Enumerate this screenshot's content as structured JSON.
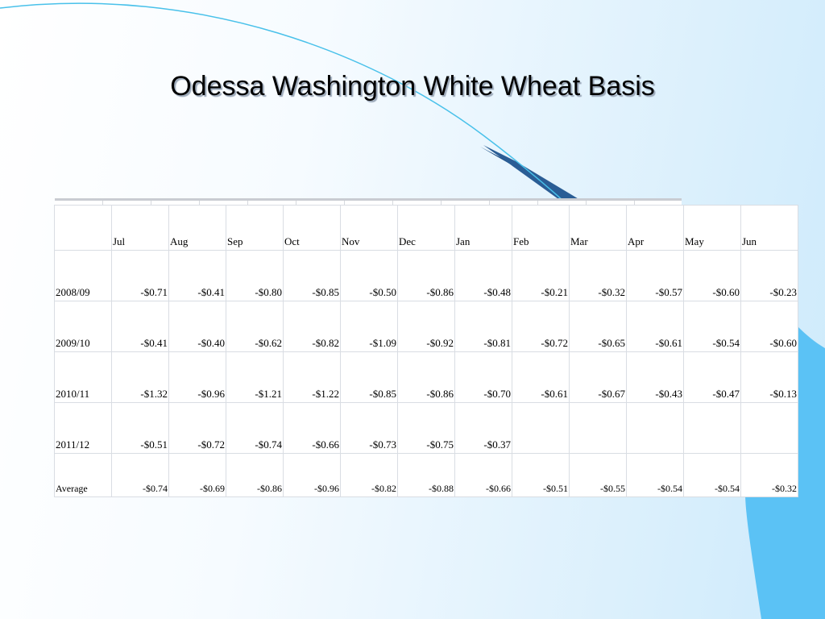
{
  "title": "Odessa Washington White Wheat Basis",
  "colors": {
    "accent_blue": "#5bc2f5",
    "navy": "#1f4f86",
    "curve": "#49c1ea"
  },
  "table": {
    "months": [
      "Jul",
      "Aug",
      "Sep",
      "Oct",
      "Nov",
      "Dec",
      "Jan",
      "Feb",
      "Mar",
      "Apr",
      "May",
      "Jun"
    ],
    "rows": [
      {
        "label": "2008/09",
        "values": [
          "-$0.71",
          "-$0.41",
          "-$0.80",
          "-$0.85",
          "-$0.50",
          "-$0.86",
          "-$0.48",
          "-$0.21",
          "-$0.32",
          "-$0.57",
          "-$0.60",
          "-$0.23"
        ]
      },
      {
        "label": "2009/10",
        "values": [
          "-$0.41",
          "-$0.40",
          "-$0.62",
          "-$0.82",
          "-$1.09",
          "-$0.92",
          "-$0.81",
          "-$0.72",
          "-$0.65",
          "-$0.61",
          "-$0.54",
          "-$0.60"
        ]
      },
      {
        "label": "2010/11",
        "values": [
          "-$1.32",
          "-$0.96",
          "-$1.21",
          "-$1.22",
          "-$0.85",
          "-$0.86",
          "-$0.70",
          "-$0.61",
          "-$0.67",
          "-$0.43",
          "-$0.47",
          "-$0.13"
        ]
      },
      {
        "label": "2011/12",
        "values": [
          "-$0.51",
          "-$0.72",
          "-$0.74",
          "-$0.66",
          "-$0.73",
          "-$0.75",
          "-$0.37",
          "",
          "",
          "",
          "",
          ""
        ]
      }
    ],
    "average": {
      "label": "Average",
      "values": [
        "-$0.74",
        "-$0.69",
        "-$0.86",
        "-$0.96",
        "-$0.82",
        "-$0.88",
        "-$0.66",
        "-$0.51",
        "-$0.55",
        "-$0.54",
        "-$0.54",
        "-$0.32"
      ]
    }
  }
}
